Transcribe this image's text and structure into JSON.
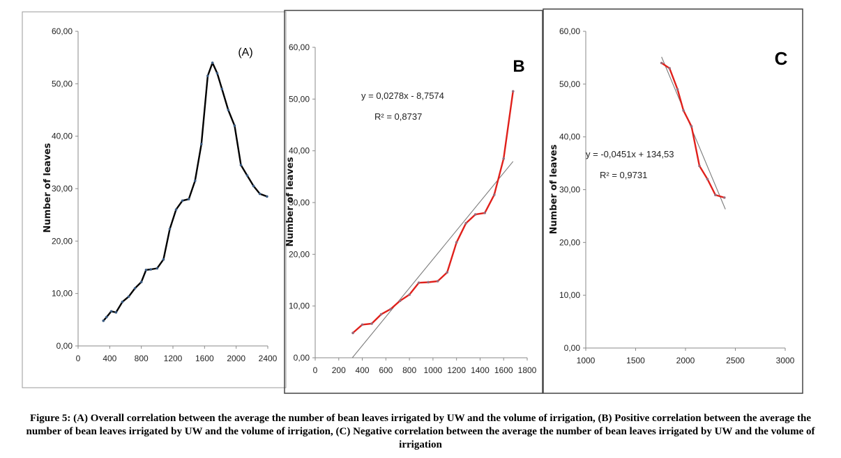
{
  "chart_data": [
    {
      "type": "line",
      "panel_label": "(A)",
      "ylabel": "Number of leaves",
      "xlim": [
        0,
        2400
      ],
      "ylim": [
        0,
        60
      ],
      "x_ticks": [
        "0",
        "400",
        "800",
        "1200",
        "1600",
        "2000",
        "2400"
      ],
      "y_ticks": [
        "0,00",
        "10,00",
        "20,00",
        "30,00",
        "40,00",
        "50,00",
        "60,00"
      ],
      "grid": false,
      "series": [
        {
          "color": "#000000",
          "x": [
            320,
            360,
            420,
            480,
            560,
            640,
            720,
            800,
            860,
            920,
            1000,
            1080,
            1160,
            1240,
            1320,
            1400,
            1480,
            1560,
            1640,
            1700,
            1760,
            1820,
            1900,
            1980,
            2060,
            2140,
            2220,
            2300,
            2390
          ],
          "y": [
            4.8,
            5.5,
            6.6,
            6.4,
            8.4,
            9.4,
            11.0,
            12.2,
            14.5,
            14.6,
            14.8,
            16.5,
            22.3,
            26.0,
            27.7,
            28.0,
            31.5,
            38.5,
            51.5,
            54.0,
            52.0,
            49.0,
            45.0,
            42.0,
            34.5,
            32.5,
            30.5,
            29.0,
            28.5
          ]
        }
      ]
    },
    {
      "type": "line",
      "panel_label": "B",
      "ylabel": "Number of leaves",
      "xlim": [
        0,
        1800
      ],
      "ylim": [
        0,
        60
      ],
      "x_ticks": [
        "0",
        "200",
        "400",
        "600",
        "800",
        "1000",
        "1200",
        "1400",
        "1600",
        "1800"
      ],
      "y_ticks": [
        "0,00",
        "10,00",
        "20,00",
        "30,00",
        "40,00",
        "50,00",
        "60,00"
      ],
      "grid": false,
      "equation": "y = 0,0278x - 8,7574",
      "r_squared": "R² = 0,8737",
      "trendline": {
        "slope": 0.0278,
        "intercept": -8.7574,
        "x_range": [
          315,
          1680
        ]
      },
      "series": [
        {
          "color": "#e0201b",
          "x": [
            320,
            400,
            480,
            560,
            640,
            720,
            800,
            880,
            960,
            1040,
            1120,
            1200,
            1280,
            1360,
            1440,
            1520,
            1600,
            1680
          ],
          "y": [
            4.8,
            6.4,
            6.6,
            8.4,
            9.4,
            11.0,
            12.2,
            14.5,
            14.6,
            14.8,
            16.5,
            22.3,
            26.0,
            27.7,
            28.0,
            31.5,
            38.5,
            51.5
          ]
        }
      ]
    },
    {
      "type": "line",
      "panel_label": "C",
      "ylabel": "Number of leaves",
      "xlim": [
        1000,
        3000
      ],
      "ylim": [
        0,
        60
      ],
      "x_ticks": [
        "1000",
        "1500",
        "2000",
        "2500",
        "3000"
      ],
      "y_ticks": [
        "0,00",
        "10,00",
        "20,00",
        "30,00",
        "40,00",
        "50,00",
        "60,00"
      ],
      "grid": false,
      "equation": "y = -0,0451x + 134,53",
      "r_squared": "R² = 0,9731",
      "trendline": {
        "slope": -0.0451,
        "intercept": 134.53,
        "x_range": [
          1760,
          2400
        ]
      },
      "series": [
        {
          "color": "#e0201b",
          "x": [
            1760,
            1840,
            1920,
            1980,
            2060,
            2140,
            2220,
            2300,
            2390
          ],
          "y": [
            54.0,
            53.0,
            49.0,
            45.0,
            42.0,
            34.5,
            32.0,
            29.0,
            28.5
          ]
        }
      ]
    }
  ],
  "caption": "Figure 5: (A) Overall correlation between the average the number of bean leaves irrigated by UW and the volume of irrigation, (B) Positive correlation between the average the number of bean leaves irrigated by UW and the volume of irrigation, (C) Negative correlation between the average the number of bean leaves irrigated by UW and the volume of irrigation"
}
